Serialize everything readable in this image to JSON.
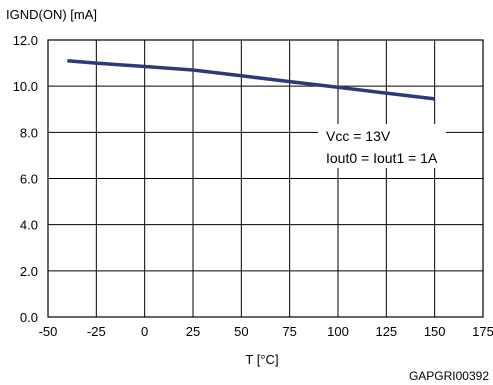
{
  "chart_data": {
    "type": "line",
    "ylabel": "IGND(ON) [mA]",
    "xlabel": "T [°C]",
    "xlim": [
      -50,
      175
    ],
    "ylim": [
      0.0,
      12.0
    ],
    "x_ticks": [
      "-50",
      "-25",
      "0",
      "25",
      "50",
      "75",
      "100",
      "125",
      "150",
      "175"
    ],
    "y_ticks": [
      "0.0",
      "2.0",
      "4.0",
      "6.0",
      "8.0",
      "10.0",
      "12.0"
    ],
    "grid": true,
    "series": [
      {
        "x": [
          -40,
          -25,
          0,
          25,
          50,
          75,
          100,
          125,
          150
        ],
        "values": [
          11.1,
          11.0,
          10.85,
          10.7,
          10.45,
          10.2,
          9.95,
          9.7,
          9.45
        ]
      }
    ],
    "annotations": [
      "Vcc = 13V",
      "Iout0 = Iout1 = 1A"
    ],
    "code": "GAPGRI00392",
    "colors": {
      "line": "#2e3a78",
      "grid": "#000000"
    }
  }
}
